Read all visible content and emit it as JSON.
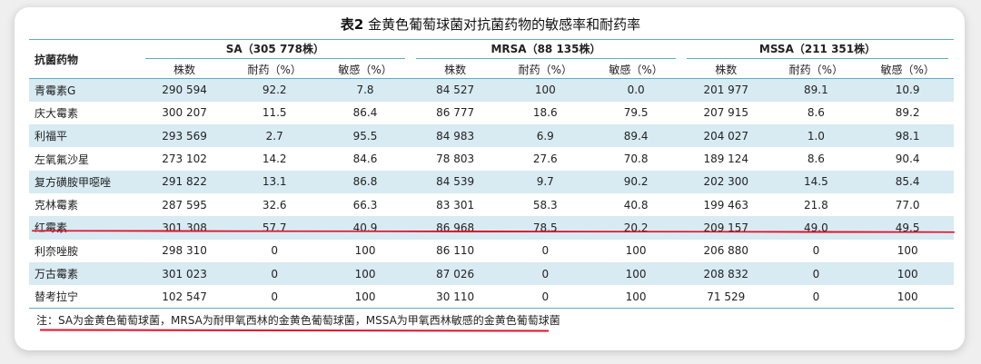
{
  "title": {
    "bold": "表2",
    "text": "金黄色葡萄球菌对抗菌药物的敏感率和耐药率"
  },
  "header": {
    "drug_col": "抗菌药物",
    "groups": [
      "SA（305 778株）",
      "MRSA（88 135株）",
      "MSSA（211 351株）"
    ],
    "subcols": [
      "株数",
      "耐药（%）",
      "敏感（%）"
    ]
  },
  "rows": [
    {
      "drug": "青霉素G",
      "v": [
        "290 594",
        "92.2",
        "7.8",
        "84 527",
        "100",
        "0.0",
        "201 977",
        "89.1",
        "10.9"
      ]
    },
    {
      "drug": "庆大霉素",
      "v": [
        "300 207",
        "11.5",
        "86.4",
        "86 777",
        "18.6",
        "79.5",
        "207 915",
        "8.6",
        "89.2"
      ]
    },
    {
      "drug": "利福平",
      "v": [
        "293 569",
        "2.7",
        "95.5",
        "84 983",
        "6.9",
        "89.4",
        "204 027",
        "1.0",
        "98.1"
      ]
    },
    {
      "drug": "左氧氟沙星",
      "v": [
        "273 102",
        "14.2",
        "84.6",
        "78 803",
        "27.6",
        "70.8",
        "189 124",
        "8.6",
        "90.4"
      ]
    },
    {
      "drug": "复方磺胺甲噁唑",
      "v": [
        "291 822",
        "13.1",
        "86.8",
        "84 539",
        "9.7",
        "90.2",
        "202 300",
        "14.5",
        "85.4"
      ]
    },
    {
      "drug": "克林霉素",
      "v": [
        "287 595",
        "32.6",
        "66.3",
        "83 301",
        "58.3",
        "40.8",
        "199 463",
        "21.8",
        "77.0"
      ]
    },
    {
      "drug": "红霉素",
      "v": [
        "301 308",
        "57.7",
        "40.9",
        "86 968",
        "78.5",
        "20.2",
        "209 157",
        "49.0",
        "49.5"
      ]
    },
    {
      "drug": "利奈唑胺",
      "v": [
        "298 310",
        "0",
        "100",
        "86 110",
        "0",
        "100",
        "206 880",
        "0",
        "100"
      ]
    },
    {
      "drug": "万古霉素",
      "v": [
        "301 023",
        "0",
        "100",
        "87 026",
        "0",
        "100",
        "208 832",
        "0",
        "100"
      ]
    },
    {
      "drug": "替考拉宁",
      "v": [
        "102 547",
        "0",
        "100",
        "30 110",
        "0",
        "100",
        "71 529",
        "0",
        "100"
      ]
    }
  ],
  "note": "注：SA为金黄色葡萄球菌，MRSA为耐甲氧西林的金黄色葡萄球菌，MSSA为甲氧西林敏感的金黄色葡萄球菌",
  "colors": {
    "stripe": "#d8eaf2",
    "rule": "#5aaec3",
    "annotation": "#e0102a"
  }
}
